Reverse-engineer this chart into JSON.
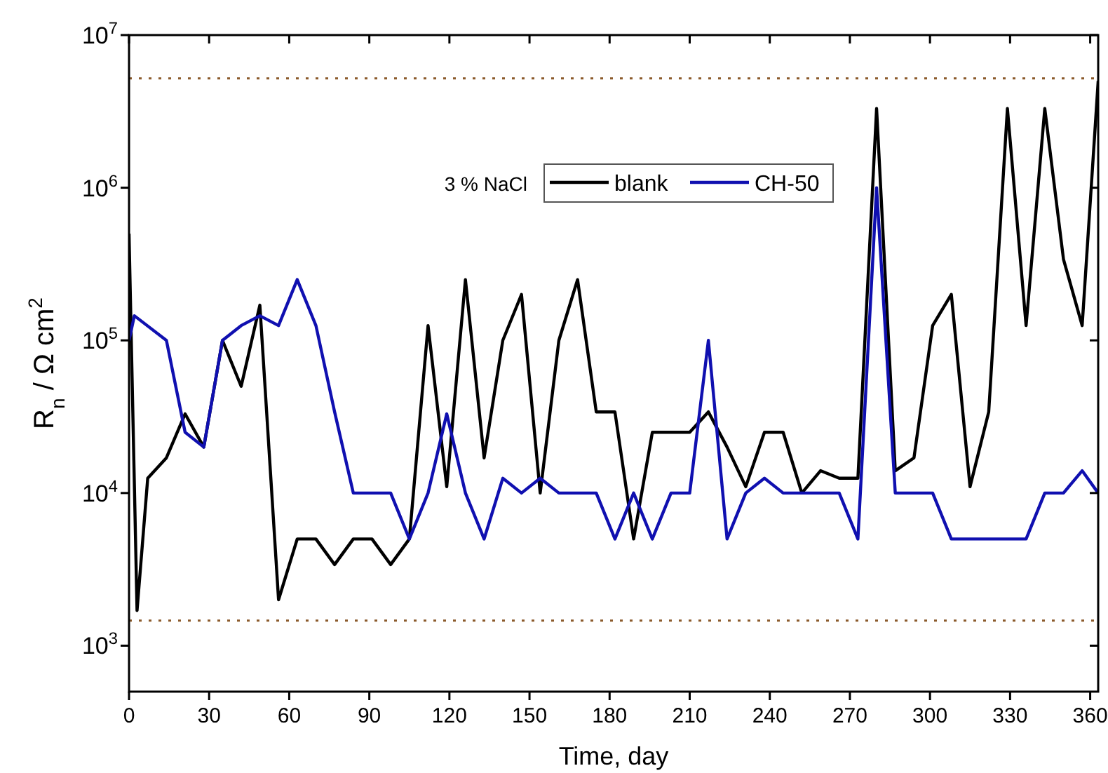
{
  "chart_data": {
    "type": "line",
    "xlabel": "Time, day",
    "ylabel": "R$_{n}$ / Ω cm$^{2}$",
    "log": "y",
    "xlim": [
      0,
      363
    ],
    "ylim": [
      500,
      10000000
    ],
    "xticks": [
      0,
      30,
      60,
      90,
      120,
      150,
      180,
      210,
      240,
      270,
      300,
      330,
      360
    ],
    "yticks": [
      {
        "value": 1000,
        "label": "10$^{3}$"
      },
      {
        "value": 10000,
        "label": "10$^{4}$"
      },
      {
        "value": 100000,
        "label": "10$^{5}$"
      },
      {
        "value": 1000000,
        "label": "10$^{6}$"
      },
      {
        "value": 10000000,
        "label": "10$^{7}$"
      }
    ],
    "legend": "top",
    "grid": false,
    "marker": "none",
    "line_style": "solid",
    "annotations": [
      "3 % NaCl"
    ],
    "ref_lines": [
      {
        "axis": "y",
        "value": 5200000,
        "label": null,
        "color": "#8b5a2b",
        "line_style": "dotted"
      },
      {
        "axis": "y",
        "value": 1460,
        "label": null,
        "color": "#8b5a2b",
        "line_style": "dotted"
      }
    ],
    "series": [
      {
        "name": "blank",
        "color": "#000000",
        "x": [
          0,
          3,
          7,
          14,
          21,
          28,
          35,
          42,
          49,
          56,
          63,
          70,
          77,
          84,
          91,
          98,
          105,
          112,
          119,
          126,
          133,
          140,
          147,
          154,
          161,
          168,
          175,
          182,
          189,
          196,
          203,
          210,
          217,
          224,
          231,
          238,
          245,
          252,
          259,
          266,
          273,
          280,
          287,
          294,
          301,
          308,
          315,
          322,
          329,
          336,
          343,
          350,
          357,
          363
        ],
        "values": [
          500000,
          1700,
          12500,
          17000,
          33000,
          20000,
          100000,
          50000,
          170000,
          2000,
          5000,
          5000,
          3400,
          5000,
          5000,
          3400,
          5000,
          125000,
          11000,
          250000,
          17000,
          100000,
          200000,
          10000,
          100000,
          250000,
          34000,
          34000,
          5000,
          25000,
          25000,
          25000,
          34000,
          20000,
          11000,
          25000,
          25000,
          10000,
          14000,
          12500,
          12500,
          3300000,
          14000,
          17000,
          125000,
          200000,
          11000,
          34000,
          3300000,
          125000,
          3300000,
          340000,
          125000,
          5000000
        ]
      },
      {
        "name": "CH-50",
        "color": "#1010b0",
        "x": [
          0,
          2,
          14,
          21,
          28,
          35,
          42,
          49,
          56,
          63,
          70,
          77,
          84,
          91,
          98,
          105,
          112,
          119,
          126,
          133,
          140,
          147,
          154,
          161,
          168,
          175,
          182,
          189,
          196,
          203,
          210,
          217,
          224,
          231,
          238,
          245,
          252,
          259,
          266,
          273,
          280,
          287,
          294,
          301,
          308,
          315,
          322,
          329,
          336,
          343,
          350,
          357,
          363
        ],
        "values": [
          100000,
          145000,
          100000,
          25000,
          20000,
          100000,
          125000,
          145000,
          125000,
          250000,
          125000,
          34000,
          10000,
          10000,
          10000,
          5000,
          10000,
          33000,
          10000,
          5000,
          12500,
          10000,
          12500,
          10000,
          10000,
          10000,
          5000,
          10000,
          5000,
          10000,
          10000,
          100000,
          5000,
          10000,
          12500,
          10000,
          10000,
          10000,
          10000,
          5000,
          1000000,
          10000,
          10000,
          10000,
          5000,
          5000,
          5000,
          5000,
          5000,
          10000,
          10000,
          14000,
          10000
        ]
      }
    ]
  }
}
